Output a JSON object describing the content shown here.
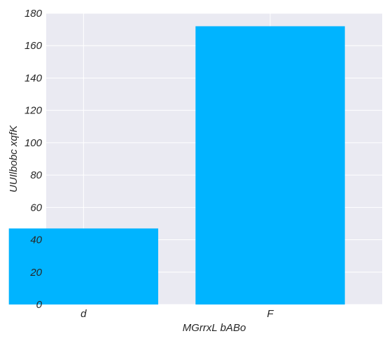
{
  "chart_data": {
    "type": "bar",
    "categories": [
      "d",
      "F"
    ],
    "values": [
      47,
      172
    ],
    "xlabel": "MGrrxL bABo",
    "ylabel": "UUIlbobc xqfK",
    "ylim": [
      0,
      180
    ],
    "yticks": [
      0,
      20,
      40,
      60,
      80,
      100,
      120,
      140,
      160,
      180
    ],
    "grid": true,
    "colors": {
      "bar": "#00b4ff",
      "plot_bg": "#eaeaf2",
      "grid": "#ffffff"
    }
  }
}
